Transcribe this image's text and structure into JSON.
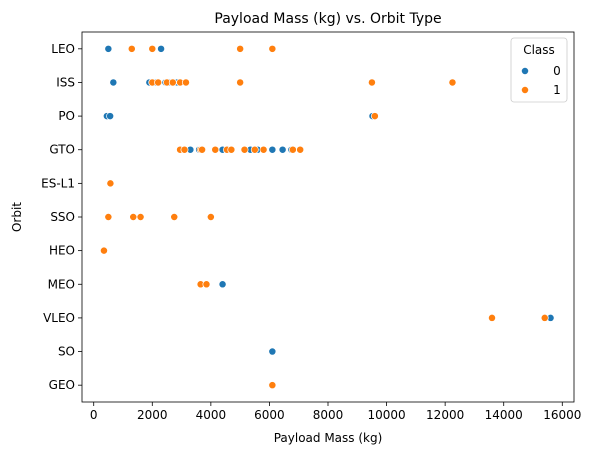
{
  "chart_data": {
    "type": "scatter",
    "title": "Payload Mass (kg) vs. Orbit Type",
    "xlabel": "Payload Mass (kg)",
    "ylabel": "Orbit",
    "xlim": [
      -400,
      16400
    ],
    "xticks": [
      0,
      2000,
      4000,
      6000,
      8000,
      10000,
      12000,
      14000,
      16000
    ],
    "categories": [
      "LEO",
      "ISS",
      "PO",
      "GTO",
      "ES-L1",
      "SSO",
      "HEO",
      "MEO",
      "VLEO",
      "SO",
      "GEO"
    ],
    "legend": {
      "title": "Class",
      "position": "top-right"
    },
    "colors": {
      "0": "#1f77b4",
      "1": "#ff7f0e"
    },
    "grid": false,
    "series": [
      {
        "name": "0",
        "points": [
          {
            "x": 500,
            "y": "LEO"
          },
          {
            "x": 2300,
            "y": "LEO"
          },
          {
            "x": 670,
            "y": "ISS"
          },
          {
            "x": 1900,
            "y": "ISS"
          },
          {
            "x": 2100,
            "y": "ISS"
          },
          {
            "x": 2450,
            "y": "ISS"
          },
          {
            "x": 2600,
            "y": "ISS"
          },
          {
            "x": 2700,
            "y": "ISS"
          },
          {
            "x": 2850,
            "y": "ISS"
          },
          {
            "x": 450,
            "y": "PO"
          },
          {
            "x": 560,
            "y": "PO"
          },
          {
            "x": 9520,
            "y": "PO"
          },
          {
            "x": 3300,
            "y": "GTO"
          },
          {
            "x": 3600,
            "y": "GTO"
          },
          {
            "x": 4400,
            "y": "GTO"
          },
          {
            "x": 5350,
            "y": "GTO"
          },
          {
            "x": 5600,
            "y": "GTO"
          },
          {
            "x": 6100,
            "y": "GTO"
          },
          {
            "x": 6450,
            "y": "GTO"
          },
          {
            "x": 6750,
            "y": "GTO"
          },
          {
            "x": 4400,
            "y": "MEO"
          },
          {
            "x": 15600,
            "y": "VLEO"
          },
          {
            "x": 6100,
            "y": "SO"
          }
        ]
      },
      {
        "name": "1",
        "points": [
          {
            "x": 1300,
            "y": "LEO"
          },
          {
            "x": 2000,
            "y": "LEO"
          },
          {
            "x": 5000,
            "y": "LEO"
          },
          {
            "x": 6100,
            "y": "LEO"
          },
          {
            "x": 2000,
            "y": "ISS"
          },
          {
            "x": 2200,
            "y": "ISS"
          },
          {
            "x": 2500,
            "y": "ISS"
          },
          {
            "x": 2700,
            "y": "ISS"
          },
          {
            "x": 2950,
            "y": "ISS"
          },
          {
            "x": 3150,
            "y": "ISS"
          },
          {
            "x": 5000,
            "y": "ISS"
          },
          {
            "x": 9500,
            "y": "ISS"
          },
          {
            "x": 12250,
            "y": "ISS"
          },
          {
            "x": 9600,
            "y": "PO"
          },
          {
            "x": 2950,
            "y": "GTO"
          },
          {
            "x": 3100,
            "y": "GTO"
          },
          {
            "x": 3650,
            "y": "GTO"
          },
          {
            "x": 3700,
            "y": "GTO"
          },
          {
            "x": 4150,
            "y": "GTO"
          },
          {
            "x": 4550,
            "y": "GTO"
          },
          {
            "x": 4700,
            "y": "GTO"
          },
          {
            "x": 5150,
            "y": "GTO"
          },
          {
            "x": 5500,
            "y": "GTO"
          },
          {
            "x": 5800,
            "y": "GTO"
          },
          {
            "x": 6800,
            "y": "GTO"
          },
          {
            "x": 7050,
            "y": "GTO"
          },
          {
            "x": 570,
            "y": "ES-L1"
          },
          {
            "x": 500,
            "y": "SSO"
          },
          {
            "x": 1350,
            "y": "SSO"
          },
          {
            "x": 1600,
            "y": "SSO"
          },
          {
            "x": 2750,
            "y": "SSO"
          },
          {
            "x": 4000,
            "y": "SSO"
          },
          {
            "x": 350,
            "y": "HEO"
          },
          {
            "x": 3650,
            "y": "MEO"
          },
          {
            "x": 3850,
            "y": "MEO"
          },
          {
            "x": 13600,
            "y": "VLEO"
          },
          {
            "x": 15400,
            "y": "VLEO"
          },
          {
            "x": 6100,
            "y": "GEO"
          }
        ]
      }
    ]
  }
}
